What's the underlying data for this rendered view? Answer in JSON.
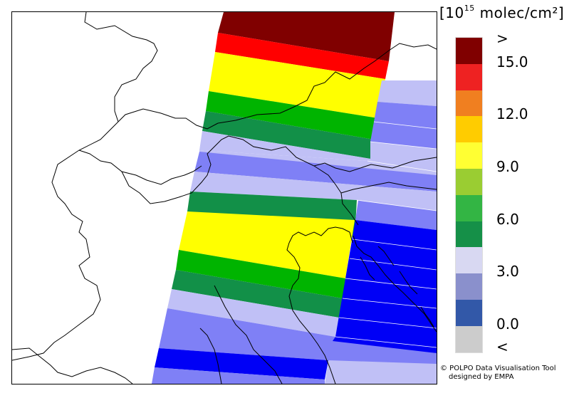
{
  "unit_label": {
    "prefix": "[10",
    "exponent": "15",
    "suffix": " molec/cm²]"
  },
  "legend": {
    "tick_labels": [
      ">",
      "15.0",
      "12.0",
      "9.0",
      "6.0",
      "3.0",
      "0.0",
      "<"
    ],
    "colors": [
      "#800000",
      "#ee2222",
      "#f07f20",
      "#ffcc00",
      "#ffff33",
      "#9acd32",
      "#33b544",
      "#159048",
      "#d8d8f2",
      "#8a90cc",
      "#3258a8",
      "#cccccc"
    ]
  },
  "credit": {
    "line1": "© POLPO Data Visualisation Tool",
    "line2": "designed by EMPA"
  },
  "map": {
    "region": "Alps / Northern Italy / Northern Adriatic",
    "swath_colors": {
      "above_max": "#800000",
      "red": "#ff0000",
      "yellow": "#ffff00",
      "green_light": "#00b400",
      "green_dark": "#129048",
      "lavender": "#c0c0f6",
      "periwinkle": "#7f80f6",
      "blue": "#0000f6"
    }
  }
}
